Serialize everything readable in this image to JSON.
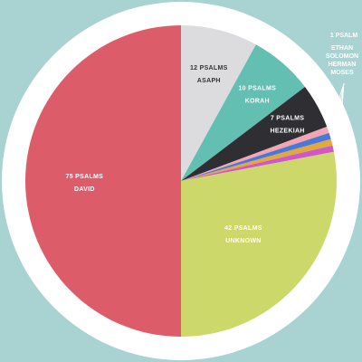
{
  "chart_data": {
    "type": "pie",
    "total": 150,
    "slices": [
      {
        "category": "ASAPH",
        "value": 12,
        "value_text": "12 PSALMS",
        "color": "#dcdcdf",
        "label_color": "#333333"
      },
      {
        "category": "KORAH",
        "value": 10,
        "value_text": "10 PSALMS",
        "color": "#62bfb2",
        "label_color": "#ffffff"
      },
      {
        "category": "HEZEKIAH",
        "value": 7,
        "value_text": "7 PSALMS",
        "color": "#2e2e33",
        "label_color": "#ffffff"
      },
      {
        "category": "ETHAN",
        "value": 1,
        "value_text": "1 PSALM",
        "color": "#f2a5b3",
        "label_color": "#ffffff"
      },
      {
        "category": "SOLOMON",
        "value": 1,
        "value_text": "1 PSALM",
        "color": "#4a78d6",
        "label_color": "#ffffff"
      },
      {
        "category": "HERMAN",
        "value": 1,
        "value_text": "1 PSALM",
        "color": "#e3a83a",
        "label_color": "#ffffff"
      },
      {
        "category": "MOSES",
        "value": 1,
        "value_text": "1 PSALM",
        "color": "#cf57c9",
        "label_color": "#ffffff"
      },
      {
        "category": "UNKNOWN",
        "value": 42,
        "value_text": "42 PSALMS",
        "color": "#ccd86a",
        "label_color": "#ffffff"
      },
      {
        "category": "DAVID",
        "value": 75,
        "value_text": "75 PSALMS",
        "color": "#dd5c6a",
        "label_color": "#ffffff"
      }
    ],
    "grouped_label": {
      "value_text": "1 PSALM",
      "names": [
        "ETHAN",
        "SOLOMON",
        "HERMAN",
        "MOSES"
      ]
    }
  },
  "colors": {
    "background": "#a9d3d2",
    "ring": "#ffffff"
  }
}
